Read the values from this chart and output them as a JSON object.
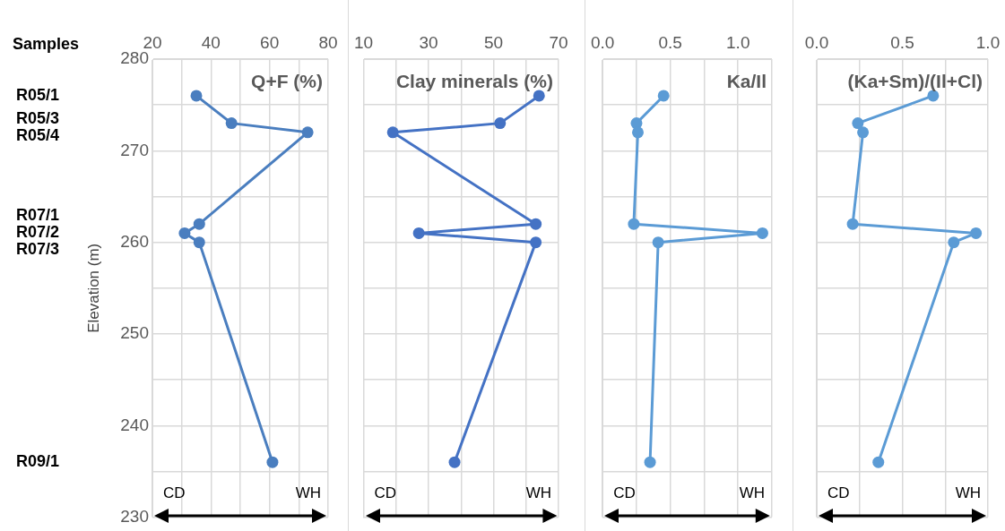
{
  "chart_data": [
    {
      "type": "line",
      "title": "Q+F (%)",
      "ylabel": "Elevation (m)",
      "color": "#4a7ebf",
      "marker": "circle",
      "grid": true,
      "x": [
        35,
        47,
        73,
        36,
        31,
        36,
        61
      ],
      "values": [
        276,
        273,
        272,
        262,
        261,
        260,
        236
      ],
      "xlim": [
        20,
        80
      ],
      "xticks": [
        20,
        {
          "value": 30,
          "label": null
        },
        40,
        {
          "value": 50,
          "label": null
        },
        60,
        {
          "value": 70,
          "label": null
        },
        80
      ],
      "ylim": [
        230,
        280
      ],
      "yticks": [
        230,
        {
          "value": 235,
          "label": null
        },
        240,
        {
          "value": 245,
          "label": null
        },
        250,
        {
          "value": 255,
          "label": null
        },
        260,
        {
          "value": 265,
          "label": null
        },
        270,
        {
          "value": 275,
          "label": null
        },
        280
      ],
      "annotations": [
        "CD",
        "WH",
        "Samples",
        "R05/1",
        "R05/3",
        "R05/4",
        "R07/1",
        "R07/2",
        "R07/3",
        "R09/1"
      ]
    },
    {
      "type": "line",
      "title": "Clay minerals (%)",
      "color": "#4472c4",
      "marker": "circle",
      "grid": true,
      "tick_labels": "x",
      "x": [
        64,
        52,
        19,
        63,
        27,
        63,
        38
      ],
      "values": [
        276,
        273,
        272,
        262,
        261,
        260,
        236
      ],
      "xlim": [
        10,
        70
      ],
      "xticks": [
        10,
        {
          "value": 20,
          "label": null
        },
        30,
        {
          "value": 40,
          "label": null
        },
        50,
        {
          "value": 60,
          "label": null
        },
        70
      ],
      "ylim": [
        230,
        280
      ],
      "yticks": [
        230,
        235,
        240,
        245,
        250,
        255,
        260,
        265,
        270,
        275,
        280
      ],
      "annotations": [
        "CD",
        "WH"
      ]
    },
    {
      "type": "line",
      "title": "Ka/Il",
      "color": "#5b9bd5",
      "marker": "circle",
      "grid": true,
      "tick_labels": "x",
      "x": [
        0.45,
        0.25,
        0.26,
        0.23,
        1.18,
        0.41,
        0.35
      ],
      "values": [
        276,
        273,
        272,
        262,
        261,
        260,
        236
      ],
      "xlim": [
        0,
        1.25
      ],
      "xticks": [
        {
          "value": 0,
          "label": "0.0"
        },
        {
          "value": 0.25,
          "label": null
        },
        {
          "value": 0.5,
          "label": "0.5"
        },
        {
          "value": 0.75,
          "label": null
        },
        {
          "value": 1,
          "label": "1.0"
        },
        {
          "value": 1.25,
          "label": null
        }
      ],
      "ylim": [
        230,
        280
      ],
      "yticks": [
        230,
        235,
        240,
        245,
        250,
        255,
        260,
        265,
        270,
        275,
        280
      ],
      "annotations": [
        "CD",
        "WH"
      ]
    },
    {
      "type": "line",
      "title": "(Ka+Sm)/(Il+Cl)",
      "color": "#5b9bd5",
      "marker": "circle",
      "grid": true,
      "tick_labels": "x",
      "x": [
        0.68,
        0.24,
        0.27,
        0.21,
        0.93,
        0.8,
        0.36
      ],
      "values": [
        276,
        273,
        272,
        262,
        261,
        260,
        236
      ],
      "xlim": [
        0,
        1
      ],
      "xticks": [
        {
          "value": 0,
          "label": "0.0"
        },
        {
          "value": 0.25,
          "label": null
        },
        {
          "value": 0.5,
          "label": "0.5"
        },
        {
          "value": 0.75,
          "label": null
        },
        {
          "value": 1,
          "label": "1.0"
        }
      ],
      "ylim": [
        230,
        280
      ],
      "yticks": [
        230,
        235,
        240,
        245,
        250,
        255,
        260,
        265,
        270,
        275,
        280
      ],
      "annotations": [
        "CD",
        "WH"
      ]
    }
  ]
}
